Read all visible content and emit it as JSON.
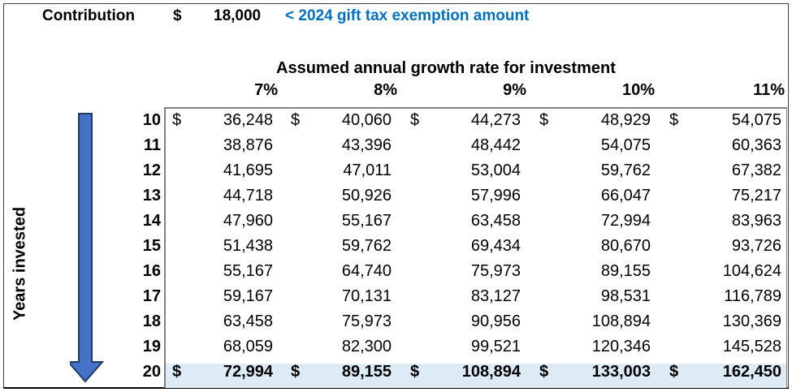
{
  "header": {
    "contribution_label": "Contribution",
    "currency_symbol": "$",
    "contribution_amount": "18,000",
    "note": "< 2024 gift tax exemption amount"
  },
  "table": {
    "column_group_title": "Assumed annual growth rate for investment",
    "row_axis_label": "Years invested",
    "rates": [
      "7%",
      "8%",
      "9%",
      "10%",
      "11%"
    ],
    "rows": [
      {
        "years": "10",
        "values": [
          "36,248",
          "40,060",
          "44,273",
          "48,929",
          "54,075"
        ],
        "show_dollar": true
      },
      {
        "years": "11",
        "values": [
          "38,876",
          "43,396",
          "48,442",
          "54,075",
          "60,363"
        ],
        "show_dollar": false
      },
      {
        "years": "12",
        "values": [
          "41,695",
          "47,011",
          "53,004",
          "59,762",
          "67,382"
        ],
        "show_dollar": false
      },
      {
        "years": "13",
        "values": [
          "44,718",
          "50,926",
          "57,996",
          "66,047",
          "75,217"
        ],
        "show_dollar": false
      },
      {
        "years": "14",
        "values": [
          "47,960",
          "55,167",
          "63,458",
          "72,994",
          "83,963"
        ],
        "show_dollar": false
      },
      {
        "years": "15",
        "values": [
          "51,438",
          "59,762",
          "69,434",
          "80,670",
          "93,726"
        ],
        "show_dollar": false
      },
      {
        "years": "16",
        "values": [
          "55,167",
          "64,740",
          "75,973",
          "89,155",
          "104,624"
        ],
        "show_dollar": false
      },
      {
        "years": "17",
        "values": [
          "59,167",
          "70,131",
          "83,127",
          "98,531",
          "116,789"
        ],
        "show_dollar": false
      },
      {
        "years": "18",
        "values": [
          "63,458",
          "75,973",
          "90,956",
          "108,894",
          "130,369"
        ],
        "show_dollar": false
      },
      {
        "years": "19",
        "values": [
          "68,059",
          "82,300",
          "99,521",
          "120,346",
          "145,528"
        ],
        "show_dollar": false
      },
      {
        "years": "20",
        "values": [
          "72,994",
          "89,155",
          "108,894",
          "133,003",
          "162,450"
        ],
        "show_dollar": true,
        "highlight": true
      }
    ]
  },
  "colors": {
    "note_text": "#0070c0",
    "highlight_row": "#ddebf7",
    "arrow_fill": "#4472c4",
    "arrow_stroke": "#203864"
  },
  "icons": {
    "arrow": "arrow-down-icon"
  }
}
